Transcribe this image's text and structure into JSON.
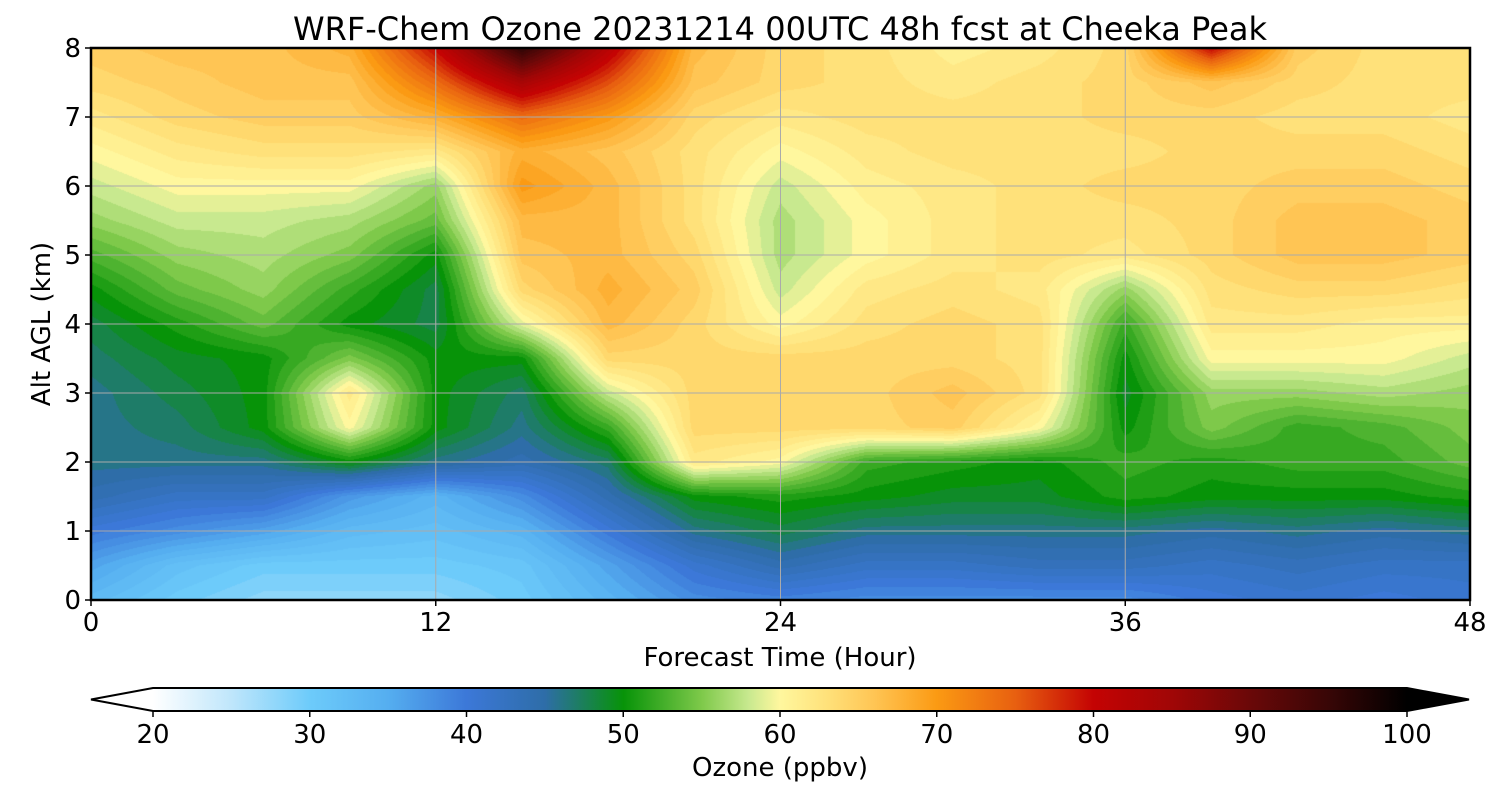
{
  "chart_data": {
    "type": "heatmap",
    "title": "WRF-Chem Ozone  20231214 00UTC 48h fcst at Cheeka Peak",
    "xlabel": "Forecast Time (Hour)",
    "ylabel": "Alt AGL (km)",
    "xlim": [
      0,
      48
    ],
    "ylim": [
      0,
      8
    ],
    "xticks": [
      0,
      12,
      24,
      36,
      48
    ],
    "yticks": [
      0,
      1,
      2,
      3,
      4,
      5,
      6,
      7,
      8
    ],
    "grid": true,
    "x": [
      0,
      3,
      6,
      9,
      12,
      15,
      18,
      21,
      24,
      27,
      30,
      33,
      36,
      39,
      42,
      45,
      48
    ],
    "y": [
      0,
      0.5,
      1,
      1.5,
      2,
      2.5,
      3,
      3.5,
      4,
      4.5,
      5,
      5.5,
      6,
      6.5,
      7,
      7.5,
      8
    ],
    "z": [
      [
        33,
        30,
        28,
        28,
        28,
        30,
        34,
        38,
        39,
        38,
        38,
        38,
        38,
        40,
        41,
        40,
        41
      ],
      [
        36,
        32,
        30,
        30,
        30,
        31,
        36,
        41,
        44,
        42,
        42,
        43,
        43,
        42,
        43,
        42,
        42
      ],
      [
        40,
        38,
        36,
        33,
        32,
        34,
        40,
        46,
        48,
        46,
        46,
        46,
        46,
        45,
        46,
        45,
        46
      ],
      [
        44,
        42,
        42,
        37,
        34,
        38,
        44,
        50,
        51,
        50,
        49,
        49,
        51,
        50,
        50,
        50,
        51
      ],
      [
        46,
        46,
        46,
        50,
        46,
        44,
        47,
        62,
        60,
        52,
        51,
        50,
        52,
        51,
        52,
        52,
        54
      ],
      [
        46,
        47,
        50,
        60,
        50,
        46,
        52,
        64,
        64,
        64,
        65,
        60,
        50,
        55,
        52,
        53,
        55
      ],
      [
        46,
        48,
        50,
        62,
        50,
        47,
        58,
        64,
        64,
        64,
        66,
        63,
        49,
        56,
        56,
        57,
        56
      ],
      [
        47,
        49,
        50,
        55,
        50,
        50,
        64,
        64,
        64,
        64,
        64,
        63,
        50,
        60,
        60,
        60,
        58
      ],
      [
        48,
        51,
        54,
        50,
        48,
        59,
        67,
        64,
        60,
        63,
        64,
        63,
        52,
        62,
        62,
        61,
        61
      ],
      [
        50,
        54,
        56,
        52,
        48,
        64,
        68,
        65,
        58,
        62,
        63,
        62,
        56,
        63,
        64,
        64,
        63
      ],
      [
        53,
        56,
        57,
        55,
        50,
        66,
        67,
        64,
        57,
        60,
        62,
        63,
        62,
        64,
        66,
        66,
        65
      ],
      [
        56,
        58,
        58,
        57,
        54,
        67,
        67,
        63,
        57,
        60,
        62,
        63,
        63,
        64,
        66,
        66,
        65
      ],
      [
        58,
        60,
        60,
        60,
        56,
        70,
        67,
        63,
        58,
        61,
        62,
        63,
        64,
        64,
        65,
        65,
        64
      ],
      [
        60,
        62,
        63,
        63,
        62,
        68,
        66,
        63,
        60,
        62,
        63,
        63,
        63,
        64,
        64,
        64,
        63
      ],
      [
        62,
        64,
        65,
        65,
        68,
        74,
        70,
        64,
        62,
        63,
        63,
        63,
        64,
        64,
        63,
        63,
        62
      ],
      [
        64,
        65,
        66,
        66,
        74,
        84,
        76,
        66,
        64,
        63,
        62,
        63,
        64,
        66,
        64,
        63,
        63
      ],
      [
        65,
        66,
        66,
        68,
        80,
        96,
        82,
        67,
        64,
        63,
        61,
        62,
        64,
        80,
        65,
        63,
        63
      ]
    ],
    "colorbar": {
      "label": "Ozone  (ppbv)",
      "min": 20,
      "max": 100,
      "ticks": [
        20,
        30,
        40,
        50,
        60,
        70,
        80,
        90,
        100
      ],
      "extend": "both",
      "stops": [
        {
          "v": 20,
          "c": "#ffffff"
        },
        {
          "v": 25,
          "c": "#bfe6fb"
        },
        {
          "v": 30,
          "c": "#6dcbfa"
        },
        {
          "v": 35,
          "c": "#55aef0"
        },
        {
          "v": 40,
          "c": "#3c78d8"
        },
        {
          "v": 45,
          "c": "#2e6da8"
        },
        {
          "v": 50,
          "c": "#079308"
        },
        {
          "v": 55,
          "c": "#7ec94a"
        },
        {
          "v": 58,
          "c": "#c8e98f"
        },
        {
          "v": 60,
          "c": "#fff79e"
        },
        {
          "v": 63,
          "c": "#ffe17a"
        },
        {
          "v": 66,
          "c": "#ffc554"
        },
        {
          "v": 70,
          "c": "#fb9a13"
        },
        {
          "v": 75,
          "c": "#e86010"
        },
        {
          "v": 80,
          "c": "#c40303"
        },
        {
          "v": 85,
          "c": "#a00606"
        },
        {
          "v": 90,
          "c": "#6a0808"
        },
        {
          "v": 95,
          "c": "#380606"
        },
        {
          "v": 100,
          "c": "#000000"
        }
      ]
    }
  }
}
